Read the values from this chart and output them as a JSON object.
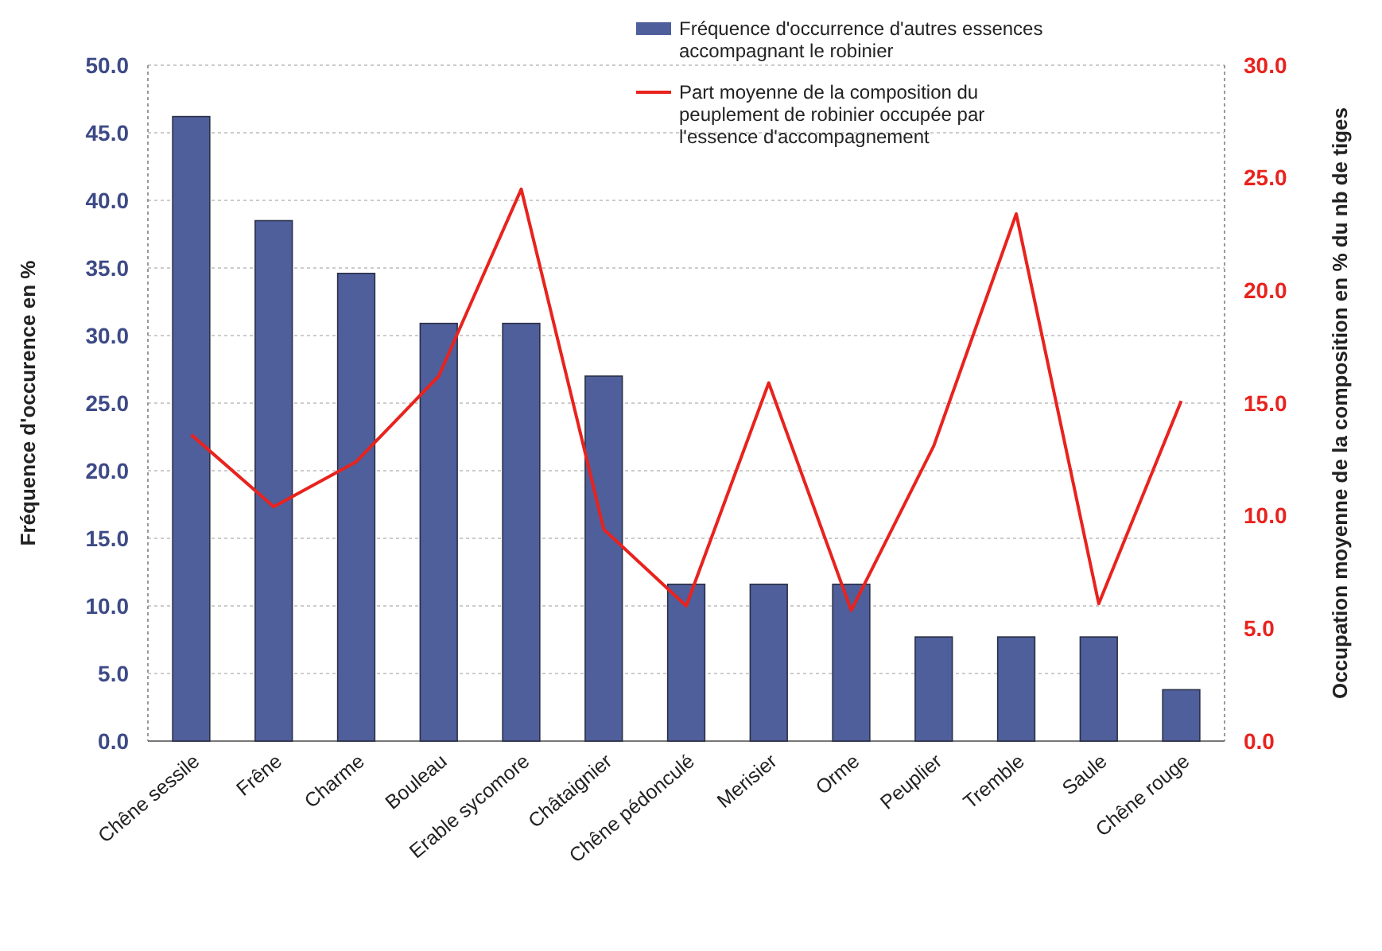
{
  "chart_data": {
    "type": "bar",
    "categories": [
      "Chêne sessile",
      "Frêne",
      "Charme",
      "Bouleau",
      "Erable sycomore",
      "Châtaignier",
      "Chêne pédonculé",
      "Merisier",
      "Orme",
      "Peuplier",
      "Tremble",
      "Saule",
      "Chêne rouge"
    ],
    "series": [
      {
        "name": "Fréquence d'occurrence d'autres essences accompagnant le robinier",
        "color": "#4f5f9c",
        "values": [
          46.2,
          38.5,
          34.6,
          30.9,
          30.9,
          27.0,
          11.6,
          11.6,
          11.6,
          7.7,
          7.7,
          7.7,
          3.8
        ]
      },
      {
        "name": "Part moyenne de la composition du peuplement de robinier occupée par l'essence d'accompagnement",
        "type": "line",
        "axis": "y2",
        "color": "#e8231e",
        "values": [
          13.6,
          10.4,
          12.4,
          16.2,
          24.5,
          9.4,
          6.0,
          15.9,
          5.8,
          13.1,
          23.4,
          6.1,
          15.1
        ]
      }
    ],
    "ylabel": "Fréquence d'occurence en %",
    "y2label": "Occupation moyenne de la composition en % du nb de tiges",
    "ylim": [
      0,
      50
    ],
    "yticks": [
      {
        "value": 0,
        "label": "0.0"
      },
      {
        "value": 5,
        "label": "5.0"
      },
      {
        "value": 10,
        "label": "10.0"
      },
      {
        "value": 15,
        "label": "15.0"
      },
      {
        "value": 20,
        "label": "20.0"
      },
      {
        "value": 25,
        "label": "25.0"
      },
      {
        "value": 30,
        "label": "30.0"
      },
      {
        "value": 35,
        "label": "35.0"
      },
      {
        "value": 40,
        "label": "40.0"
      },
      {
        "value": 45,
        "label": "45.0"
      },
      {
        "value": 50,
        "label": "50.0"
      }
    ],
    "y2lim": [
      0,
      30
    ],
    "y2ticks": [
      {
        "value": 0,
        "label": "0.0"
      },
      {
        "value": 5,
        "label": "5.0"
      },
      {
        "value": 10,
        "label": "10.0"
      },
      {
        "value": 15,
        "label": "15.0"
      },
      {
        "value": 20,
        "label": "20.0"
      },
      {
        "value": 25,
        "label": "25.0"
      },
      {
        "value": 30,
        "label": "30.0"
      }
    ],
    "grid": "y",
    "legend": "top right",
    "marker": "none"
  }
}
